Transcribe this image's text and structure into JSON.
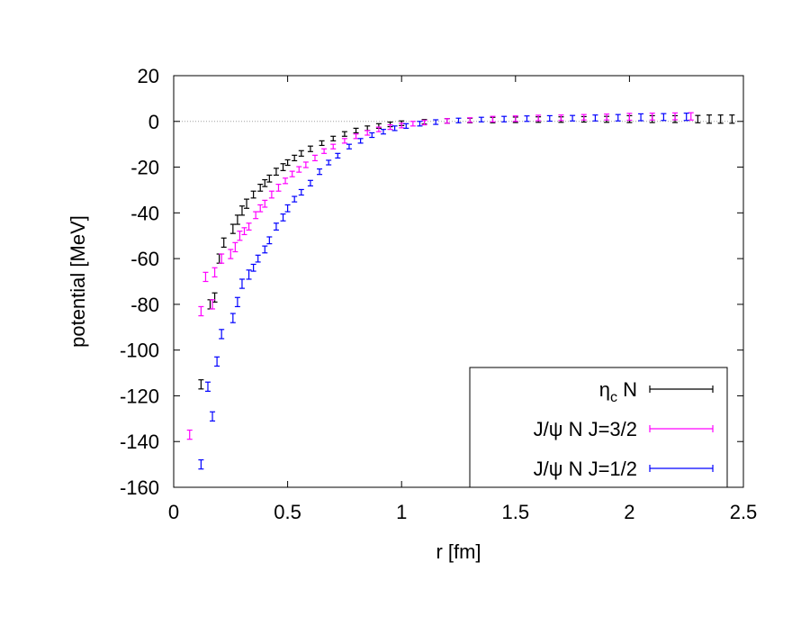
{
  "chart_data": {
    "type": "scatter",
    "xlabel": "r [fm]",
    "ylabel": "potential [MeV]",
    "xlim": [
      0,
      2.5
    ],
    "ylim": [
      -160,
      20
    ],
    "xticks": [
      "0",
      "0.5",
      "1",
      "1.5",
      "2",
      "2.5"
    ],
    "xtick_values": [
      0,
      0.5,
      1,
      1.5,
      2,
      2.5
    ],
    "yticks": [
      "20",
      "0",
      "-20",
      "-40",
      "-60",
      "-80",
      "-100",
      "-120",
      "-140",
      "-160"
    ],
    "ytick_values": [
      20,
      0,
      -20,
      -40,
      -60,
      -80,
      -100,
      -120,
      -140,
      -160
    ],
    "zero_line": true,
    "legend_position": "bottom-right",
    "series": [
      {
        "name_main": "η",
        "name_sub": "c",
        "name_rest": " N",
        "color": "#000000",
        "points": [
          [
            0.12,
            -115,
            2
          ],
          [
            0.16,
            -80,
            2
          ],
          [
            0.18,
            -77,
            2
          ],
          [
            0.2,
            -60,
            2
          ],
          [
            0.22,
            -53,
            2
          ],
          [
            0.26,
            -47,
            2
          ],
          [
            0.28,
            -43,
            2
          ],
          [
            0.3,
            -39,
            2
          ],
          [
            0.32,
            -36,
            2
          ],
          [
            0.35,
            -32,
            1.5
          ],
          [
            0.38,
            -29,
            1.5
          ],
          [
            0.4,
            -27,
            1.5
          ],
          [
            0.42,
            -25,
            1.5
          ],
          [
            0.45,
            -22,
            1.5
          ],
          [
            0.48,
            -20,
            1.5
          ],
          [
            0.5,
            -18,
            1.2
          ],
          [
            0.53,
            -16,
            1.2
          ],
          [
            0.56,
            -14,
            1.2
          ],
          [
            0.6,
            -12,
            1.2
          ],
          [
            0.65,
            -9.5,
            1
          ],
          [
            0.7,
            -7.5,
            1
          ],
          [
            0.75,
            -5.5,
            1
          ],
          [
            0.8,
            -4,
            1
          ],
          [
            0.85,
            -3,
            1
          ],
          [
            0.9,
            -2,
            1
          ],
          [
            0.95,
            -1.3,
            1
          ],
          [
            1.0,
            -0.8,
            1
          ],
          [
            1.1,
            -0.2,
            1
          ],
          [
            1.2,
            0.2,
            1
          ],
          [
            1.3,
            0.4,
            1
          ],
          [
            1.4,
            0.6,
            1.2
          ],
          [
            1.5,
            0.7,
            1.2
          ],
          [
            1.6,
            0.8,
            1.2
          ],
          [
            1.7,
            0.8,
            1.2
          ],
          [
            1.8,
            0.9,
            1.2
          ],
          [
            1.9,
            0.9,
            1.3
          ],
          [
            2.0,
            1.0,
            1.5
          ],
          [
            2.1,
            1.0,
            1.5
          ],
          [
            2.2,
            1.0,
            1.5
          ],
          [
            2.3,
            1.0,
            1.6
          ],
          [
            2.35,
            1.0,
            1.8
          ],
          [
            2.4,
            1.0,
            1.8
          ],
          [
            2.45,
            1.0,
            1.8
          ]
        ]
      },
      {
        "name_main": "J/ψ N J=3/2",
        "name_sub": "",
        "name_rest": "",
        "color": "#ff00ff",
        "points": [
          [
            0.07,
            -137,
            2
          ],
          [
            0.12,
            -83,
            2
          ],
          [
            0.14,
            -68,
            2
          ],
          [
            0.17,
            -80,
            2
          ],
          [
            0.18,
            -66,
            2
          ],
          [
            0.21,
            -60,
            2
          ],
          [
            0.25,
            -58,
            2
          ],
          [
            0.27,
            -55,
            2
          ],
          [
            0.29,
            -50,
            2
          ],
          [
            0.31,
            -48,
            1.5
          ],
          [
            0.33,
            -46,
            1.5
          ],
          [
            0.36,
            -41,
            1.5
          ],
          [
            0.38,
            -38,
            1.5
          ],
          [
            0.4,
            -36,
            1.5
          ],
          [
            0.43,
            -32,
            1.5
          ],
          [
            0.46,
            -29,
            1.5
          ],
          [
            0.49,
            -26,
            1.2
          ],
          [
            0.52,
            -23,
            1.2
          ],
          [
            0.55,
            -21,
            1.2
          ],
          [
            0.58,
            -19,
            1.2
          ],
          [
            0.62,
            -16,
            1.2
          ],
          [
            0.66,
            -13,
            1
          ],
          [
            0.7,
            -11,
            1
          ],
          [
            0.75,
            -8.5,
            1
          ],
          [
            0.8,
            -6.5,
            1
          ],
          [
            0.85,
            -5,
            1
          ],
          [
            0.9,
            -3.5,
            1
          ],
          [
            0.95,
            -2.5,
            1
          ],
          [
            1.0,
            -1.8,
            1
          ],
          [
            1.05,
            -1,
            1
          ],
          [
            1.1,
            -0.5,
            1
          ],
          [
            1.2,
            0.2,
            1
          ],
          [
            1.3,
            0.6,
            1
          ],
          [
            1.4,
            1.0,
            1.2
          ],
          [
            1.5,
            1.2,
            1.2
          ],
          [
            1.6,
            1.5,
            1.2
          ],
          [
            1.7,
            1.6,
            1.2
          ],
          [
            1.8,
            1.8,
            1.2
          ],
          [
            1.9,
            1.9,
            1.3
          ],
          [
            2.0,
            2.0,
            1.5
          ],
          [
            2.1,
            2.1,
            1.5
          ],
          [
            2.2,
            2.2,
            1.5
          ],
          [
            2.27,
            2.2,
            1.6
          ]
        ]
      },
      {
        "name_main": "J/ψ N J=1/2",
        "name_sub": "",
        "name_rest": "",
        "color": "#0000ff",
        "points": [
          [
            0.12,
            -150,
            2
          ],
          [
            0.15,
            -116,
            2
          ],
          [
            0.17,
            -129,
            2
          ],
          [
            0.19,
            -105,
            2
          ],
          [
            0.21,
            -93,
            2
          ],
          [
            0.26,
            -86,
            2
          ],
          [
            0.28,
            -79,
            2
          ],
          [
            0.3,
            -71,
            2
          ],
          [
            0.33,
            -67,
            2
          ],
          [
            0.35,
            -64,
            1.5
          ],
          [
            0.37,
            -60,
            1.5
          ],
          [
            0.4,
            -56,
            1.5
          ],
          [
            0.42,
            -52,
            1.5
          ],
          [
            0.45,
            -46,
            1.5
          ],
          [
            0.48,
            -42,
            1.5
          ],
          [
            0.5,
            -38,
            1.5
          ],
          [
            0.53,
            -34,
            1.2
          ],
          [
            0.56,
            -31,
            1.2
          ],
          [
            0.6,
            -27,
            1.2
          ],
          [
            0.64,
            -22,
            1.2
          ],
          [
            0.68,
            -18,
            1
          ],
          [
            0.72,
            -15,
            1
          ],
          [
            0.77,
            -11,
            1
          ],
          [
            0.82,
            -8.5,
            1
          ],
          [
            0.87,
            -6,
            1
          ],
          [
            0.92,
            -4.5,
            1
          ],
          [
            0.97,
            -3,
            1
          ],
          [
            1.02,
            -2,
            1
          ],
          [
            1.08,
            -1,
            1
          ],
          [
            1.15,
            -0.3,
            1
          ],
          [
            1.25,
            0.4,
            1
          ],
          [
            1.35,
            0.8,
            1
          ],
          [
            1.45,
            1.0,
            1.2
          ],
          [
            1.55,
            1.2,
            1.2
          ],
          [
            1.65,
            1.3,
            1.2
          ],
          [
            1.75,
            1.4,
            1.2
          ],
          [
            1.85,
            1.5,
            1.3
          ],
          [
            1.95,
            1.6,
            1.4
          ],
          [
            2.05,
            1.8,
            1.5
          ],
          [
            2.15,
            1.9,
            1.5
          ],
          [
            2.25,
            2.0,
            1.6
          ]
        ]
      }
    ]
  }
}
